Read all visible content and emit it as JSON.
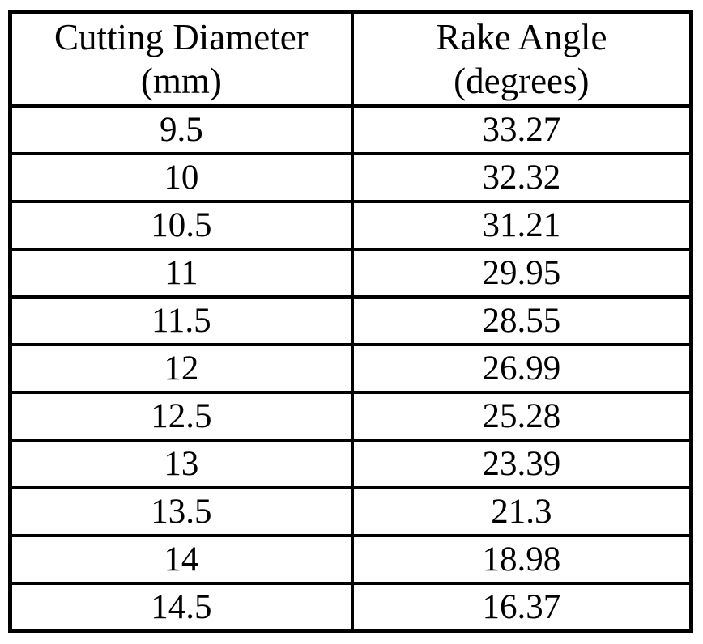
{
  "table": {
    "columns": [
      {
        "title": "Cutting Diameter",
        "unit": "(mm)"
      },
      {
        "title": "Rake Angle",
        "unit": "(degrees)"
      }
    ],
    "rows": [
      {
        "diameter": "9.5",
        "angle": "33.27"
      },
      {
        "diameter": "10",
        "angle": "32.32"
      },
      {
        "diameter": "10.5",
        "angle": "31.21"
      },
      {
        "diameter": "11",
        "angle": "29.95"
      },
      {
        "diameter": "11.5",
        "angle": "28.55"
      },
      {
        "diameter": "12",
        "angle": "26.99"
      },
      {
        "diameter": "12.5",
        "angle": "25.28"
      },
      {
        "diameter": "13",
        "angle": "23.39"
      },
      {
        "diameter": "13.5",
        "angle": "21.3"
      },
      {
        "diameter": "14",
        "angle": "18.98"
      },
      {
        "diameter": "14.5",
        "angle": "16.37"
      }
    ]
  },
  "colors": {
    "border": "#000000",
    "text": "#000000",
    "background": "#ffffff"
  },
  "chart_data": {
    "type": "table",
    "title": "",
    "columns": [
      "Cutting Diameter (mm)",
      "Rake Angle (degrees)"
    ],
    "x": [
      9.5,
      10,
      10.5,
      11,
      11.5,
      12,
      12.5,
      13,
      13.5,
      14,
      14.5
    ],
    "values": [
      33.27,
      32.32,
      31.21,
      29.95,
      28.55,
      26.99,
      25.28,
      23.39,
      21.3,
      18.98,
      16.37
    ]
  }
}
